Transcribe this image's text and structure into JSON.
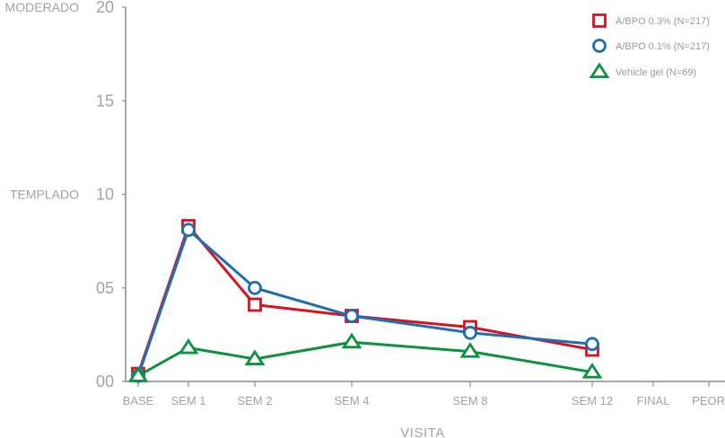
{
  "chart_data": {
    "type": "line",
    "xlabel": "VISITA",
    "ylabel": "",
    "categories": [
      "BASE",
      "SEM 1",
      "SEM 2",
      "SEM 4",
      "SEM 8",
      "SEM 12",
      "FINAL",
      "PEOR"
    ],
    "ylim": [
      0,
      20
    ],
    "y_ticks": [
      {
        "value": 0,
        "label": "00"
      },
      {
        "value": 5,
        "label": "05"
      },
      {
        "value": 10,
        "label": "10"
      },
      {
        "value": 15,
        "label": "15"
      },
      {
        "value": 20,
        "label": "20"
      }
    ],
    "y_annotations": [
      {
        "value": 20,
        "text": "MODERADO"
      },
      {
        "value": 10,
        "text": "TEMPLADO"
      }
    ],
    "legend_position": "top-right",
    "series": [
      {
        "name": "A/BPO 0.3% (N=217)",
        "color": "#d7141e",
        "marker": "square",
        "values": [
          0.4,
          8.3,
          4.1,
          3.5,
          2.9,
          1.7,
          null,
          null
        ]
      },
      {
        "name": "A/BPO 0.1% (N=217)",
        "color": "#1f6fb2",
        "marker": "circle",
        "values": [
          0.3,
          8.1,
          5.0,
          3.5,
          2.6,
          2.0,
          null,
          null
        ]
      },
      {
        "name": "Vehicle gel (N=69)",
        "color": "#0e9140",
        "marker": "triangle",
        "values": [
          0.3,
          1.8,
          1.2,
          2.1,
          1.6,
          0.5,
          null,
          null
        ]
      }
    ]
  }
}
